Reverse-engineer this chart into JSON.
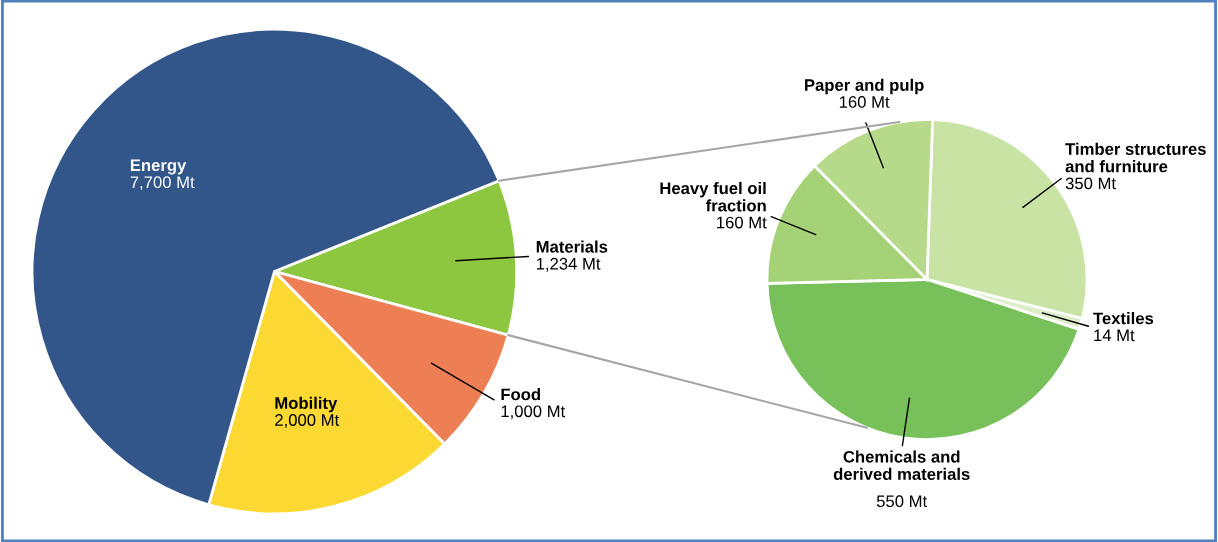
{
  "chart_data": [
    {
      "type": "pie",
      "categories": [
        "Materials",
        "Food",
        "Mobility",
        "Energy"
      ],
      "values": [
        1234,
        1000,
        2000,
        7700
      ],
      "colors": [
        "#8dc63f",
        "#ee7f55",
        "#fcd932",
        "#32568a"
      ],
      "value_labels": [
        "1,234 Mt",
        "1,000 Mt",
        "2,000 Mt",
        "7,700 Mt"
      ]
    },
    {
      "type": "pie",
      "categories": [
        "Timber structures and furniture",
        "Textiles",
        "Chemicals and derived materials",
        "Heavy fuel oil fraction",
        "Paper and pulp"
      ],
      "values": [
        350,
        14,
        550,
        160,
        160
      ],
      "colors": [
        "#c9e3a5",
        "#dcedc8",
        "#77c05a",
        "#a5d177",
        "#b6da8a"
      ],
      "value_labels": [
        "350 Mt",
        "14 Mt",
        "550 Mt",
        "160 Mt",
        "160 Mt"
      ]
    }
  ]
}
